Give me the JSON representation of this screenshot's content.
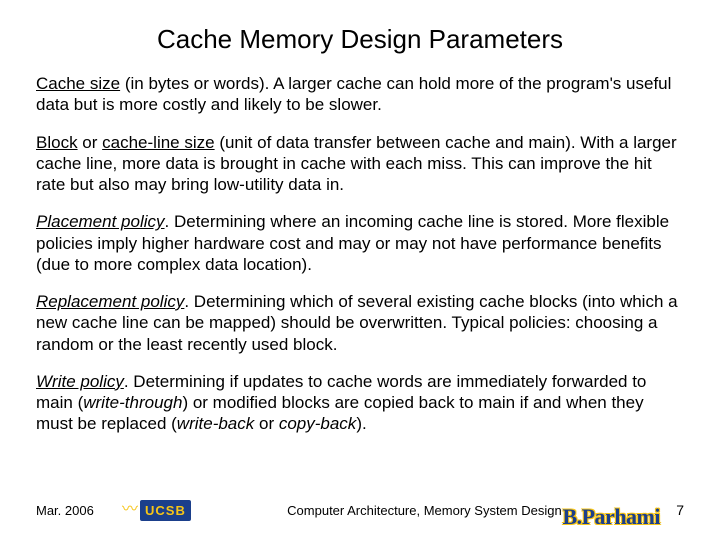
{
  "title": "Cache Memory Design Parameters",
  "paragraphs": [
    {
      "term": "Cache size",
      "rest": " (in bytes or words). A larger cache can hold more of the program's useful data but is more costly and likely to be slower.",
      "italicTerm": false
    },
    {
      "term": "Block",
      "mid": " or ",
      "term2": "cache-line size",
      "rest": " (unit of data transfer between cache and main). With a larger cache line, more data is brought in cache with each miss. This can improve the hit rate but also may bring low-utility data in.",
      "italicTerm": false
    },
    {
      "term": "Placement policy",
      "rest": ". Determining where an incoming cache line is stored. More flexible policies imply higher hardware cost and may or may not have performance benefits (due to more complex data location).",
      "italicTerm": true
    },
    {
      "term": "Replacement policy",
      "rest": ". Determining which of several existing cache blocks (into which a new cache line can be mapped) should be overwritten. Typical policies: choosing a random or the least recently used block.",
      "italicTerm": true
    },
    {
      "term": "Write policy",
      "rest1": ". Determining if updates to cache words are immediately forwarded to main (",
      "ital1": "write-through",
      "rest2": ") or modified blocks are copied back to main if and when they must be replaced (",
      "ital2": "write-back",
      "rest3": " or ",
      "ital3": "copy-back",
      "rest4": ").",
      "italicTerm": true
    }
  ],
  "footer": {
    "date": "Mar. 2006",
    "logo_text": "UCSB",
    "center": "Computer Architecture, Memory System Design",
    "signature": "B.Parhami",
    "page": "7"
  },
  "colors": {
    "bg": "#ffffff",
    "text": "#000000",
    "logo_bg": "#1b3f8b",
    "logo_fg": "#f7c516"
  }
}
